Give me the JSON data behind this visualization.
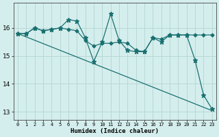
{
  "xlabel": "Humidex (Indice chaleur)",
  "background_color": "#d4eeed",
  "grid_color": "#b8d8d4",
  "line_color": "#1a7070",
  "x": [
    0,
    1,
    2,
    3,
    4,
    5,
    6,
    7,
    8,
    9,
    10,
    11,
    12,
    13,
    14,
    15,
    16,
    17,
    18,
    19,
    20,
    21,
    22,
    23
  ],
  "series_jagged": [
    15.8,
    15.8,
    16.0,
    15.9,
    15.95,
    16.0,
    16.3,
    16.25,
    15.65,
    14.8,
    15.5,
    16.5,
    15.55,
    15.2,
    15.15,
    15.15,
    15.65,
    15.5,
    15.75,
    15.75,
    15.75,
    14.85,
    13.6,
    13.1
  ],
  "series_smooth": [
    15.8,
    15.8,
    16.0,
    15.9,
    15.95,
    16.0,
    15.95,
    15.9,
    15.55,
    15.35,
    15.45,
    15.45,
    15.5,
    15.45,
    15.2,
    15.15,
    15.65,
    15.6,
    15.75,
    15.75,
    15.75,
    15.75,
    15.75,
    15.75
  ],
  "trend": [
    15.8,
    15.68,
    15.56,
    15.44,
    15.32,
    15.2,
    15.08,
    14.96,
    14.84,
    14.72,
    14.6,
    14.48,
    14.36,
    14.24,
    14.12,
    14.0,
    13.88,
    13.76,
    13.64,
    13.52,
    13.4,
    13.28,
    13.16,
    13.04
  ],
  "ylim": [
    12.7,
    16.9
  ],
  "yticks": [
    13,
    14,
    15,
    16
  ],
  "xlim": [
    -0.5,
    23.5
  ]
}
